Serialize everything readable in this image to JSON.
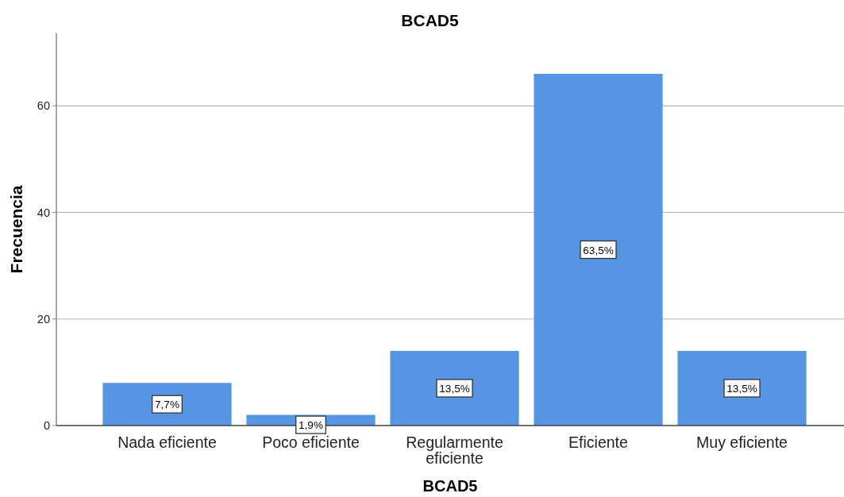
{
  "chart_data": {
    "type": "bar",
    "title": "BCAD5",
    "xlabel": "BCAD5",
    "ylabel": "Frecuencia",
    "categories": [
      "Nada eficiente",
      "Poco eficiente",
      "Regularmente eficiente",
      "Eficiente",
      "Muy eficiente"
    ],
    "values": [
      8,
      2,
      14,
      66,
      14
    ],
    "color": "#5595e4",
    "annotations": [
      "7,7%",
      "1,9%",
      "13,5%",
      "63,5%",
      "13,5%"
    ],
    "ylim": [
      0,
      73.6
    ],
    "yticks": [
      0,
      20,
      40,
      60
    ],
    "grid": "y"
  }
}
